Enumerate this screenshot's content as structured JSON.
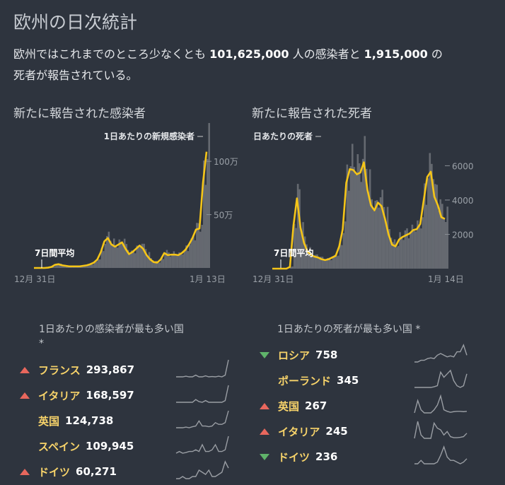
{
  "title": "欧州の日次統計",
  "summary": {
    "pre": "欧州ではこれまでのところ少なくとも",
    "cases": "101,625,000",
    "mid": "人の感染者と",
    "deaths": "1,915,000",
    "post": "の",
    "line2": "死者が報告されている。"
  },
  "colors": {
    "bg": "#2e343e",
    "line": "#f5c518",
    "bars": "#656970",
    "up": "#e8675d",
    "down": "#5fb36a",
    "name": "#f7d36a"
  },
  "chart_data": [
    {
      "type": "area",
      "title": "新たに報告された感染者",
      "bar_label": "1日あたりの新規感染者",
      "avg_label": "7日間平均",
      "unit": "万",
      "x_start": "12月 31日",
      "x_end": "1月 13日",
      "yticks": [
        {
          "v": 50,
          "label": "50万"
        },
        {
          "v": 100,
          "label": "100万"
        }
      ],
      "ylim": [
        0,
        120
      ],
      "values": [
        0,
        0,
        0,
        0,
        0.3,
        1,
        3,
        3.5,
        2.5,
        2,
        1.5,
        1.5,
        1.5,
        1.5,
        2,
        2.5,
        3.5,
        5,
        8,
        15,
        25,
        28,
        22,
        20,
        22,
        24,
        18,
        13,
        15,
        18,
        21,
        18,
        12,
        8,
        5.5,
        5,
        8,
        14,
        12,
        12.5,
        12.5,
        12,
        14,
        17,
        22,
        28,
        36,
        37,
        80,
        109
      ]
    },
    {
      "type": "area",
      "title": "新たに報告された死者",
      "bar_label": "1日あたりの死者",
      "avg_label": "7日間平均",
      "x_start": "12月 31日",
      "x_end": "1月 14日",
      "yticks": [
        {
          "v": 2000,
          "label": "2000"
        },
        {
          "v": 4000,
          "label": "4000"
        },
        {
          "v": 6000,
          "label": "6000"
        }
      ],
      "ylim": [
        0,
        7500
      ],
      "values": [
        0,
        0,
        0,
        0,
        0,
        100,
        2500,
        4100,
        2400,
        1500,
        1000,
        800,
        700,
        650,
        550,
        500,
        550,
        650,
        750,
        1300,
        2300,
        5000,
        5800,
        5750,
        5500,
        5600,
        6200,
        4600,
        3700,
        3400,
        3850,
        3650,
        2900,
        2000,
        1400,
        1300,
        1700,
        1850,
        1950,
        2050,
        2250,
        2300,
        2600,
        4000,
        5350,
        5650,
        4200,
        3700,
        3000,
        2900
      ]
    }
  ],
  "cases_list": {
    "heading": "1日あたりの感染者が最も多い国",
    "note": "*",
    "rows": [
      {
        "name": "フランス",
        "value": "293,867",
        "trend": "up",
        "spark": [
          1,
          1,
          1,
          1.2,
          1,
          1,
          1.5,
          1,
          1,
          1.3,
          1,
          1.1,
          1,
          1.2,
          1,
          1.5,
          6
        ]
      },
      {
        "name": "イタリア",
        "value": "168,597",
        "trend": "up",
        "spark": [
          1,
          1,
          1,
          1,
          1,
          1,
          1.8,
          1.2,
          1,
          1.5,
          1,
          1,
          1,
          1,
          1,
          1.5,
          6
        ]
      },
      {
        "name": "英国",
        "value": "124,738",
        "trend": "none",
        "spark": [
          1,
          1,
          1,
          1.2,
          1,
          1.3,
          1.5,
          3,
          1.5,
          1.5,
          1.3,
          1.5,
          2.5,
          2,
          2,
          2.5,
          6
        ]
      },
      {
        "name": "スペイン",
        "value": "109,945",
        "trend": "none",
        "spark": [
          1,
          1.5,
          1,
          1.2,
          1.5,
          1.5,
          2,
          1.5,
          3.5,
          1.5,
          1.5,
          2,
          3.5,
          1.5,
          1.5,
          2,
          6
        ]
      },
      {
        "name": "ドイツ",
        "value": "60,271",
        "trend": "up",
        "spark": [
          1,
          1,
          1.5,
          1,
          1,
          1.5,
          1.5,
          3,
          2.5,
          2,
          3,
          1.5,
          1.5,
          2,
          2.5,
          5,
          3.5
        ]
      }
    ]
  },
  "deaths_list": {
    "heading": "1日あたりの死者が最も多い国 *",
    "rows": [
      {
        "name": "ロシア",
        "value": "758",
        "trend": "down",
        "spark": [
          1,
          1,
          1.5,
          1.5,
          2,
          2.2,
          2,
          3,
          3.5,
          3,
          2.5,
          2.8,
          2.5,
          4,
          4,
          6,
          3
        ]
      },
      {
        "name": "ポーランド",
        "value": "345",
        "trend": "none",
        "spark": [
          1,
          1,
          1,
          1,
          1,
          1,
          1.2,
          1.5,
          5.5,
          4,
          5,
          6,
          3,
          1.5,
          1,
          1.5,
          5
        ]
      },
      {
        "name": "英国",
        "value": "267",
        "trend": "up",
        "spark": [
          1,
          5,
          2,
          1,
          1,
          1,
          2,
          3.5,
          6.5,
          2,
          1.5,
          1.2,
          1.4,
          1.5,
          1.5,
          1.4,
          1.5
        ]
      },
      {
        "name": "イタリア",
        "value": "245",
        "trend": "up",
        "spark": [
          1,
          6,
          2,
          1,
          1,
          1,
          5.5,
          4,
          3.5,
          2,
          3,
          1.5,
          1.2,
          1.2,
          1.3,
          1.5,
          2.5
        ]
      },
      {
        "name": "ドイツ",
        "value": "236",
        "trend": "down",
        "spark": [
          1,
          1,
          2,
          1,
          1,
          1,
          1,
          1.5,
          3.5,
          6,
          3,
          2,
          2,
          1.5,
          1,
          1.5,
          2.5
        ]
      }
    ]
  }
}
